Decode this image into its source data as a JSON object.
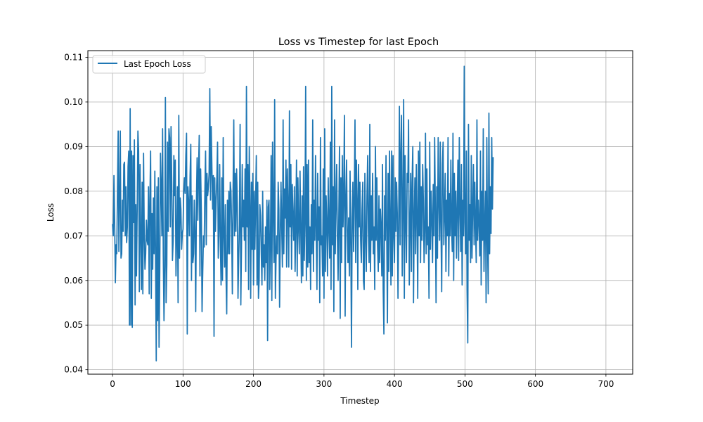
{
  "chart_data": {
    "type": "line",
    "title": "Loss vs Timestep for last Epoch",
    "xlabel": "Timestep",
    "ylabel": "Loss",
    "xlim": [
      -35,
      738
    ],
    "ylim": [
      0.039,
      0.1115
    ],
    "xticks": [
      0,
      100,
      200,
      300,
      400,
      500,
      600,
      700
    ],
    "yticks": [
      0.04,
      0.05,
      0.06,
      0.07,
      0.08,
      0.09,
      0.1,
      0.11
    ],
    "ytick_labels": [
      "0.04",
      "0.05",
      "0.06",
      "0.07",
      "0.08",
      "0.09",
      "0.10",
      "0.11"
    ],
    "grid": true,
    "legend_position": "top-left",
    "series": [
      {
        "name": "Last Epoch Loss",
        "color": "#1f77b4",
        "x_start": 0,
        "x_step": 1,
        "values": [
          0.0725,
          0.07,
          0.0835,
          0.073,
          0.0595,
          0.068,
          0.066,
          0.08,
          0.0935,
          0.0665,
          0.078,
          0.0935,
          0.065,
          0.066,
          0.078,
          0.071,
          0.086,
          0.0865,
          0.07,
          0.081,
          0.0685,
          0.072,
          0.0855,
          0.089,
          0.05,
          0.0985,
          0.05,
          0.089,
          0.0495,
          0.088,
          0.073,
          0.0915,
          0.0545,
          0.077,
          0.061,
          0.0765,
          0.0935,
          0.089,
          0.0575,
          0.086,
          0.07,
          0.058,
          0.082,
          0.057,
          0.0885,
          0.07,
          0.0625,
          0.066,
          0.0735,
          0.069,
          0.068,
          0.081,
          0.057,
          0.078,
          0.089,
          0.056,
          0.075,
          0.0625,
          0.0785,
          0.066,
          0.0845,
          0.0655,
          0.042,
          0.081,
          0.051,
          0.083,
          0.045,
          0.062,
          0.0885,
          0.081,
          0.07,
          0.094,
          0.0655,
          0.051,
          0.063,
          0.101,
          0.055,
          0.0635,
          0.091,
          0.071,
          0.094,
          0.092,
          0.072,
          0.0945,
          0.082,
          0.0645,
          0.069,
          0.088,
          0.079,
          0.087,
          0.061,
          0.07,
          0.081,
          0.055,
          0.097,
          0.065,
          0.0785,
          0.076,
          0.067,
          0.0705,
          0.0715,
          0.08,
          0.083,
          0.0795,
          0.088,
          0.093,
          0.048,
          0.081,
          0.0775,
          0.07,
          0.0835,
          0.0905,
          0.06,
          0.079,
          0.064,
          0.066,
          0.078,
          0.071,
          0.053,
          0.0775,
          0.0875,
          0.0735,
          0.085,
          0.0925,
          0.061,
          0.085,
          0.075,
          0.053,
          0.062,
          0.07,
          0.0675,
          0.08,
          0.089,
          0.068,
          0.084,
          0.079,
          0.081,
          0.084,
          0.103,
          0.078,
          0.0945,
          0.085,
          0.076,
          0.0835,
          0.0475,
          0.083,
          0.071,
          0.078,
          0.083,
          0.091,
          0.065,
          0.071,
          0.086,
          0.068,
          0.059,
          0.083,
          0.06,
          0.092,
          0.07,
          0.063,
          0.077,
          0.061,
          0.0525,
          0.078,
          0.066,
          0.08,
          0.066,
          0.082,
          0.08,
          0.072,
          0.057,
          0.08,
          0.096,
          0.07,
          0.084,
          0.071,
          0.085,
          0.077,
          0.056,
          0.065,
          0.0725,
          0.095,
          0.0545,
          0.068,
          0.086,
          0.072,
          0.078,
          0.069,
          0.085,
          0.062,
          0.1035,
          0.072,
          0.086,
          0.058,
          0.09,
          0.077,
          0.056,
          0.082,
          0.067,
          0.084,
          0.059,
          0.08,
          0.067,
          0.078,
          0.088,
          0.059,
          0.082,
          0.056,
          0.06,
          0.077,
          0.0745,
          0.066,
          0.059,
          0.08,
          0.063,
          0.068,
          0.06,
          0.072,
          0.064,
          0.078,
          0.0465,
          0.0765,
          0.078,
          0.058,
          0.0675,
          0.088,
          0.0555,
          0.091,
          0.076,
          0.064,
          0.1005,
          0.056,
          0.065,
          0.07,
          0.066,
          0.082,
          0.076,
          0.054,
          0.07,
          0.082,
          0.072,
          0.063,
          0.096,
          0.066,
          0.0805,
          0.074,
          0.087,
          0.063,
          0.085,
          0.076,
          0.063,
          0.098,
          0.072,
          0.086,
          0.0625,
          0.0815,
          0.074,
          0.069,
          0.081,
          0.062,
          0.072,
          0.087,
          0.061,
          0.083,
          0.072,
          0.066,
          0.0845,
          0.072,
          0.0595,
          0.079,
          0.061,
          0.0855,
          0.0645,
          0.073,
          0.1035,
          0.06,
          0.086,
          0.063,
          0.087,
          0.064,
          0.072,
          0.058,
          0.077,
          0.066,
          0.096,
          0.062,
          0.078,
          0.069,
          0.088,
          0.071,
          0.058,
          0.084,
          0.069,
          0.0765,
          0.055,
          0.092,
          0.068,
          0.07,
          0.061,
          0.085,
          0.056,
          0.094,
          0.062,
          0.079,
          0.073,
          0.061,
          0.083,
          0.072,
          0.065,
          0.091,
          0.058,
          0.1035,
          0.068,
          0.081,
          0.053,
          0.096,
          0.066,
          0.077,
          0.086,
          0.07,
          0.06,
          0.074,
          0.09,
          0.0515,
          0.083,
          0.064,
          0.088,
          0.072,
          0.079,
          0.097,
          0.052,
          0.078,
          0.087,
          0.071,
          0.064,
          0.074,
          0.061,
          0.0845,
          0.07,
          0.045,
          0.074,
          0.082,
          0.0665,
          0.079,
          0.096,
          0.064,
          0.087,
          0.078,
          0.058,
          0.086,
          0.072,
          0.082,
          0.069,
          0.064,
          0.076,
          0.082,
          0.06,
          0.058,
          0.084,
          0.07,
          0.062,
          0.079,
          0.088,
          0.071,
          0.064,
          0.095,
          0.062,
          0.079,
          0.069,
          0.084,
          0.066,
          0.072,
          0.058,
          0.09,
          0.069,
          0.083,
          0.068,
          0.062,
          0.079,
          0.064,
          0.076,
          0.072,
          0.061,
          0.086,
          0.058,
          0.048,
          0.079,
          0.069,
          0.088,
          0.071,
          0.0505,
          0.084,
          0.062,
          0.089,
          0.073,
          0.059,
          0.089,
          0.061,
          0.088,
          0.07,
          0.064,
          0.083,
          0.071,
          0.082,
          0.075,
          0.056,
          0.073,
          0.099,
          0.068,
          0.088,
          0.097,
          0.061,
          0.076,
          0.1005,
          0.056,
          0.088,
          0.073,
          0.064,
          0.084,
          0.082,
          0.096,
          0.059,
          0.071,
          0.084,
          0.062,
          0.082,
          0.09,
          0.055,
          0.074,
          0.083,
          0.066,
          0.086,
          0.074,
          0.056,
          0.089,
          0.07,
          0.091,
          0.064,
          0.081,
          0.069,
          0.086,
          0.078,
          0.064,
          0.071,
          0.093,
          0.066,
          0.085,
          0.068,
          0.072,
          0.056,
          0.091,
          0.067,
          0.08,
          0.074,
          0.064,
          0.0815,
          0.07,
          0.092,
          0.076,
          0.055,
          0.081,
          0.065,
          0.092,
          0.078,
          0.069,
          0.091,
          0.072,
          0.0575,
          0.086,
          0.091,
          0.068,
          0.075,
          0.084,
          0.062,
          0.078,
          0.07,
          0.092,
          0.061,
          0.0795,
          0.07,
          0.087,
          0.072,
          0.0665,
          0.093,
          0.06,
          0.084,
          0.07,
          0.08,
          0.065,
          0.076,
          0.087,
          0.0645,
          0.092,
          0.076,
          0.0665,
          0.086,
          0.059,
          0.078,
          0.07,
          0.108,
          0.073,
          0.066,
          0.089,
          0.058,
          0.046,
          0.095,
          0.069,
          0.077,
          0.064,
          0.088,
          0.065,
          0.076,
          0.086,
          0.068,
          0.082,
          0.072,
          0.064,
          0.096,
          0.069,
          0.078,
          0.073,
          0.0655,
          0.089,
          0.059,
          0.08,
          0.069,
          0.094,
          0.062,
          0.072,
          0.08,
          0.055,
          0.092,
          0.07,
          0.057,
          0.0975,
          0.066,
          0.081,
          0.0705,
          0.092,
          0.076,
          0.0875
        ]
      }
    ]
  }
}
